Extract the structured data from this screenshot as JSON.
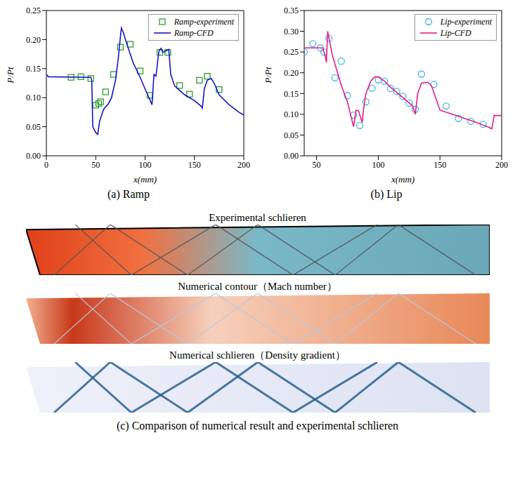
{
  "chart_data": [
    {
      "type": "line",
      "title": "(a) Ramp",
      "x_label": "x(mm)",
      "y_label": "P/Pt",
      "xlim": [
        0,
        200
      ],
      "xticks": [
        0,
        50,
        100,
        150,
        200
      ],
      "ylim": [
        0,
        0.25
      ],
      "yticks": [
        {
          "value": 0,
          "label": "0.00"
        },
        0.05,
        {
          "value": 0.1,
          "label": "0.10"
        },
        0.15,
        {
          "value": 0.2,
          "label": "0.20"
        },
        0.25
      ],
      "grid": false,
      "legend": "upper right",
      "series": [
        {
          "name": "Ramp-experiment",
          "type": "scatter",
          "marker": "square",
          "color": "#2ca02c",
          "x": [
            25,
            35,
            45,
            50,
            53,
            55,
            60,
            68,
            75,
            85,
            95,
            105,
            115,
            123,
            135,
            145,
            155,
            163,
            175
          ],
          "values": [
            0.135,
            0.136,
            0.133,
            0.087,
            0.09,
            0.093,
            0.11,
            0.14,
            0.187,
            0.192,
            0.146,
            0.104,
            0.178,
            0.178,
            0.121,
            0.106,
            0.13,
            0.137,
            0.114
          ]
        },
        {
          "name": "Ramp-CFD",
          "type": "line",
          "color": "#1515c8",
          "x": [
            0,
            2,
            45,
            46,
            47,
            50,
            52,
            54,
            58,
            63,
            66,
            70,
            73,
            75,
            76,
            78,
            82,
            88,
            95,
            100,
            106,
            107,
            109,
            111,
            114,
            116,
            118,
            120,
            124,
            126,
            130,
            140,
            150,
            157,
            158,
            160,
            163,
            167,
            170,
            175,
            185,
            195,
            200
          ],
          "values": [
            0.14,
            0.136,
            0.135,
            0.13,
            0.05,
            0.04,
            0.037,
            0.06,
            0.08,
            0.09,
            0.1,
            0.13,
            0.17,
            0.205,
            0.22,
            0.212,
            0.19,
            0.16,
            0.135,
            0.115,
            0.092,
            0.088,
            0.14,
            0.137,
            0.18,
            0.185,
            0.178,
            0.18,
            0.183,
            0.14,
            0.12,
            0.105,
            0.095,
            0.085,
            0.082,
            0.115,
            0.13,
            0.133,
            0.125,
            0.105,
            0.088,
            0.075,
            0.07
          ]
        }
      ]
    },
    {
      "type": "line",
      "title": "(b) Lip",
      "x_label": "x(mm)",
      "y_label": "P/Pt",
      "xlim": [
        40,
        200
      ],
      "xticks": [
        50,
        100,
        150,
        200
      ],
      "ylim": [
        0,
        0.35
      ],
      "yticks": [
        {
          "value": 0,
          "label": "0.00"
        },
        0.05,
        {
          "value": 0.1,
          "label": "0.10"
        },
        0.15,
        {
          "value": 0.2,
          "label": "0.20"
        },
        0.25,
        {
          "value": 0.3,
          "label": "0.30"
        },
        0.35
      ],
      "grid": false,
      "legend": "upper right",
      "series": [
        {
          "name": "Lip-experiment",
          "type": "scatter",
          "marker": "circle",
          "color": "#45b4e6",
          "x": [
            40,
            47,
            53,
            56,
            60,
            65,
            70,
            75,
            80,
            85,
            90,
            95,
            100,
            105,
            110,
            115,
            120,
            125,
            130,
            135,
            145,
            155,
            165,
            175,
            185
          ],
          "values": [
            0.25,
            0.27,
            0.26,
            0.25,
            0.283,
            0.188,
            0.228,
            0.145,
            0.098,
            0.073,
            0.13,
            0.163,
            0.183,
            0.18,
            0.162,
            0.155,
            0.143,
            0.127,
            0.112,
            0.197,
            0.172,
            0.12,
            0.09,
            0.083,
            0.076
          ]
        },
        {
          "name": "Lip-CFD",
          "type": "line",
          "color": "#e0218a",
          "x": [
            40,
            55,
            57,
            58,
            59,
            61,
            63,
            66,
            70,
            75,
            80,
            82,
            84,
            87,
            88,
            90,
            94,
            97,
            100,
            105,
            110,
            120,
            128,
            130,
            132,
            135,
            140,
            143,
            150,
            160,
            170,
            180,
            190,
            192,
            194,
            200
          ],
          "values": [
            0.26,
            0.26,
            0.24,
            0.225,
            0.3,
            0.27,
            0.24,
            0.21,
            0.17,
            0.13,
            0.07,
            0.11,
            0.108,
            0.08,
            0.11,
            0.15,
            0.18,
            0.19,
            0.19,
            0.18,
            0.165,
            0.14,
            0.12,
            0.1,
            0.15,
            0.175,
            0.177,
            0.17,
            0.11,
            0.1,
            0.09,
            0.08,
            0.068,
            0.065,
            0.097,
            0.097
          ]
        }
      ]
    }
  ],
  "panel_c": {
    "caption": "(c) Comparison of numerical result and experimental schlieren",
    "labels": [
      "Experimental schlieren",
      "Numerical contour（Mach number）",
      "Numerical schlieren（Density gradient）"
    ]
  }
}
